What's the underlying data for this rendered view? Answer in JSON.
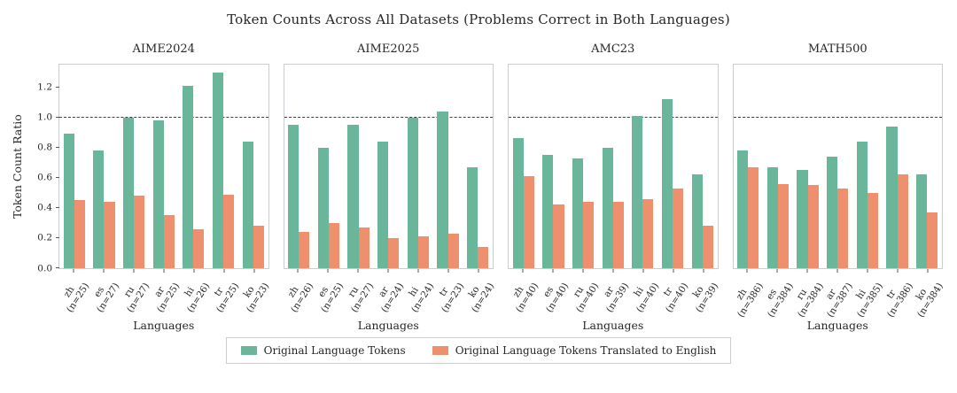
{
  "figure": {
    "title": "Token Counts Across All Datasets (Problems Correct in Both Languages)",
    "ylabel": "Token Count Ratio",
    "xlabel": "Languages"
  },
  "legend": {
    "items": [
      {
        "label": "Original Language Tokens",
        "color": "#6ab69b"
      },
      {
        "label": "Original Language Tokens Translated to English",
        "color": "#ee8f6d"
      }
    ]
  },
  "chart_data": {
    "type": "bar",
    "ylim": [
      0,
      1.35
    ],
    "yticks": [
      0.0,
      0.2,
      0.4,
      0.6,
      0.8,
      1.0,
      1.2
    ],
    "reference_line": 1.0,
    "grid": false,
    "legend_position": "bottom",
    "series_colors": [
      "#6ab69b",
      "#ee8f6d"
    ],
    "series_names": [
      "Original Language Tokens",
      "Original Language Tokens Translated to English"
    ],
    "panels": [
      {
        "title": "AIME2024",
        "categories": [
          {
            "lang": "zh",
            "n": 25
          },
          {
            "lang": "es",
            "n": 27
          },
          {
            "lang": "ru",
            "n": 27
          },
          {
            "lang": "ar",
            "n": 25
          },
          {
            "lang": "hi",
            "n": 26
          },
          {
            "lang": "tr",
            "n": 25
          },
          {
            "lang": "ko",
            "n": 23
          }
        ],
        "series": [
          {
            "name": "Original Language Tokens",
            "values": [
              0.89,
              0.78,
              1.0,
              0.98,
              1.21,
              1.3,
              0.84
            ]
          },
          {
            "name": "Original Language Tokens Translated to English",
            "values": [
              0.45,
              0.44,
              0.48,
              0.35,
              0.26,
              0.49,
              0.28
            ]
          }
        ]
      },
      {
        "title": "AIME2025",
        "categories": [
          {
            "lang": "zh",
            "n": 26
          },
          {
            "lang": "es",
            "n": 25
          },
          {
            "lang": "ru",
            "n": 27
          },
          {
            "lang": "ar",
            "n": 24
          },
          {
            "lang": "hi",
            "n": 24
          },
          {
            "lang": "tr",
            "n": 23
          },
          {
            "lang": "ko",
            "n": 24
          }
        ],
        "series": [
          {
            "name": "Original Language Tokens",
            "values": [
              0.95,
              0.8,
              0.95,
              0.84,
              1.0,
              1.04,
              0.67
            ]
          },
          {
            "name": "Original Language Tokens Translated to English",
            "values": [
              0.24,
              0.3,
              0.27,
              0.2,
              0.21,
              0.23,
              0.14
            ]
          }
        ]
      },
      {
        "title": "AMC23",
        "categories": [
          {
            "lang": "zh",
            "n": 40
          },
          {
            "lang": "es",
            "n": 40
          },
          {
            "lang": "ru",
            "n": 40
          },
          {
            "lang": "ar",
            "n": 39
          },
          {
            "lang": "hi",
            "n": 40
          },
          {
            "lang": "tr",
            "n": 40
          },
          {
            "lang": "ko",
            "n": 39
          }
        ],
        "series": [
          {
            "name": "Original Language Tokens",
            "values": [
              0.86,
              0.75,
              0.73,
              0.8,
              1.01,
              1.12,
              0.62
            ]
          },
          {
            "name": "Original Language Tokens Translated to English",
            "values": [
              0.61,
              0.42,
              0.44,
              0.44,
              0.46,
              0.53,
              0.28
            ]
          }
        ]
      },
      {
        "title": "MATH500",
        "categories": [
          {
            "lang": "zh",
            "n": 386
          },
          {
            "lang": "es",
            "n": 384
          },
          {
            "lang": "ru",
            "n": 384
          },
          {
            "lang": "ar",
            "n": 387
          },
          {
            "lang": "hi",
            "n": 385
          },
          {
            "lang": "tr",
            "n": 386
          },
          {
            "lang": "ko",
            "n": 384
          }
        ],
        "series": [
          {
            "name": "Original Language Tokens",
            "values": [
              0.78,
              0.67,
              0.65,
              0.74,
              0.84,
              0.94,
              0.62
            ]
          },
          {
            "name": "Original Language Tokens Translated to English",
            "values": [
              0.67,
              0.56,
              0.55,
              0.53,
              0.5,
              0.62,
              0.37
            ]
          }
        ]
      }
    ]
  }
}
